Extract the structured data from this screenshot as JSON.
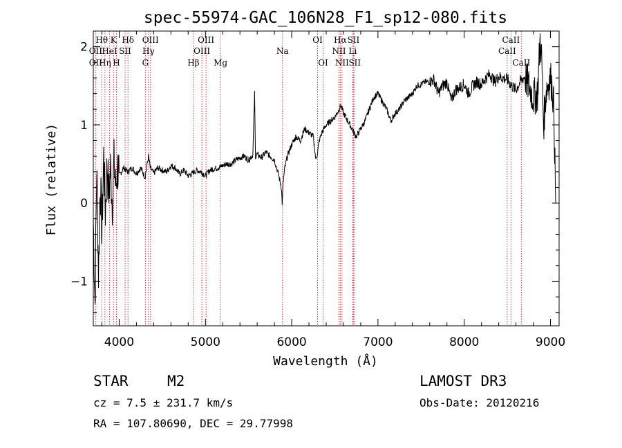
{
  "chart_data": {
    "type": "line",
    "title": "spec-55974-GAC_106N28_F1_sp12-080.fits",
    "xlabel": "Wavelength (Å)",
    "ylabel": "Flux (relative)",
    "xlim": [
      3700,
      9100
    ],
    "ylim": [
      -1.57,
      2.2
    ],
    "xticks": [
      4000,
      5000,
      6000,
      7000,
      8000,
      9000
    ],
    "yticks": [
      -1,
      0,
      1,
      2
    ],
    "grid": false,
    "series": [
      {
        "name": "flux",
        "x": [
          3700,
          3720,
          3740,
          3760,
          3780,
          3800,
          3820,
          3840,
          3860,
          3880,
          3900,
          3920,
          3940,
          3960,
          3980,
          4000,
          4050,
          4100,
          4150,
          4200,
          4250,
          4300,
          4340,
          4360,
          4400,
          4450,
          4500,
          4550,
          4600,
          4650,
          4700,
          4750,
          4800,
          4850,
          4900,
          4950,
          5000,
          5050,
          5100,
          5150,
          5200,
          5250,
          5300,
          5350,
          5400,
          5450,
          5500,
          5550,
          5570,
          5580,
          5600,
          5650,
          5700,
          5750,
          5800,
          5850,
          5880,
          5890,
          5900,
          5920,
          5950,
          6000,
          6050,
          6100,
          6150,
          6200,
          6250,
          6280,
          6300,
          6320,
          6350,
          6400,
          6450,
          6500,
          6550,
          6570,
          6600,
          6650,
          6700,
          6720,
          6750,
          6800,
          6850,
          6900,
          6950,
          7000,
          7050,
          7100,
          7150,
          7200,
          7250,
          7300,
          7350,
          7400,
          7450,
          7500,
          7550,
          7600,
          7650,
          7700,
          7750,
          7800,
          7850,
          7900,
          7950,
          8000,
          8050,
          8100,
          8150,
          8200,
          8250,
          8300,
          8350,
          8400,
          8450,
          8500,
          8550,
          8600,
          8650,
          8700,
          8750,
          8800,
          8850,
          8880,
          8900,
          8920,
          8950,
          8980,
          9000,
          9020,
          9040,
          9060
        ],
        "y": [
          -0.2,
          -1.3,
          0.5,
          -0.9,
          0.3,
          -0.4,
          0.6,
          -0.1,
          0.5,
          0.1,
          0.45,
          0.0,
          0.5,
          0.2,
          0.45,
          0.35,
          0.45,
          0.4,
          0.45,
          0.38,
          0.45,
          0.33,
          0.6,
          0.45,
          0.38,
          0.45,
          0.42,
          0.4,
          0.48,
          0.45,
          0.37,
          0.42,
          0.35,
          0.38,
          0.42,
          0.4,
          0.35,
          0.42,
          0.44,
          0.45,
          0.48,
          0.5,
          0.5,
          0.55,
          0.58,
          0.6,
          0.55,
          0.62,
          1.4,
          0.6,
          0.62,
          0.58,
          0.65,
          0.6,
          0.55,
          0.35,
          0.2,
          0.0,
          0.25,
          0.45,
          0.6,
          0.75,
          0.85,
          0.8,
          0.95,
          0.9,
          0.85,
          0.55,
          0.65,
          0.8,
          0.9,
          1.0,
          1.05,
          1.1,
          1.2,
          1.25,
          1.15,
          1.05,
          0.95,
          0.9,
          0.85,
          0.95,
          1.05,
          1.2,
          1.35,
          1.4,
          1.3,
          1.2,
          1.05,
          1.15,
          1.2,
          1.3,
          1.35,
          1.4,
          1.5,
          1.52,
          1.55,
          1.55,
          1.58,
          1.4,
          1.5,
          1.55,
          1.3,
          1.45,
          1.48,
          1.52,
          1.4,
          1.5,
          1.55,
          1.52,
          1.6,
          1.65,
          1.55,
          1.62,
          1.6,
          1.58,
          1.5,
          1.45,
          1.55,
          1.62,
          1.5,
          1.35,
          1.4,
          2.1,
          1.8,
          1.0,
          1.45,
          1.55,
          1.6,
          1.5,
          1.2,
          0.0
        ]
      }
    ],
    "spectral_lines": [
      {
        "name": "Hθ",
        "x": 3798,
        "row": 1
      },
      {
        "name": "OII",
        "x": 3727,
        "row": 2
      },
      {
        "name": "OII",
        "x": 3727,
        "row": 3
      },
      {
        "name": "Hη",
        "x": 3835,
        "row": 3
      },
      {
        "name": "HeI",
        "x": 3889,
        "row": 2
      },
      {
        "name": "K",
        "x": 3934,
        "row": 1
      },
      {
        "name": "H",
        "x": 3968,
        "row": 3
      },
      {
        "name": "SII",
        "x": 4069,
        "row": 2
      },
      {
        "name": "Hδ",
        "x": 4102,
        "row": 1
      },
      {
        "name": "OIII",
        "x": 4363,
        "row": 1
      },
      {
        "name": "Hγ",
        "x": 4340,
        "row": 2
      },
      {
        "name": "G",
        "x": 4304,
        "row": 3
      },
      {
        "name": "Hβ",
        "x": 4861,
        "row": 3
      },
      {
        "name": "OIII",
        "x": 5007,
        "row": 1
      },
      {
        "name": "OIII",
        "x": 4959,
        "row": 2
      },
      {
        "name": "Mg",
        "x": 5175,
        "row": 3
      },
      {
        "name": "Na",
        "x": 5893,
        "row": 2
      },
      {
        "name": "OI",
        "x": 6300,
        "row": 1
      },
      {
        "name": "OI",
        "x": 6364,
        "row": 3
      },
      {
        "name": "Hα",
        "x": 6563,
        "row": 1
      },
      {
        "name": "SII",
        "x": 6716,
        "row": 1
      },
      {
        "name": "NII",
        "x": 6548,
        "row": 2
      },
      {
        "name": "Li",
        "x": 6708,
        "row": 2
      },
      {
        "name": "NII",
        "x": 6583,
        "row": 3
      },
      {
        "name": "SII",
        "x": 6731,
        "row": 3
      },
      {
        "name": "CaII",
        "x": 8542,
        "row": 1
      },
      {
        "name": "CaII",
        "x": 8498,
        "row": 2
      },
      {
        "name": "CaII",
        "x": 8662,
        "row": 3
      }
    ]
  },
  "info": {
    "object_class": "STAR",
    "subclass": "M2",
    "survey": "LAMOST DR3",
    "cz": "cz = 7.5 ± 231.7 km/s",
    "obs_date": "Obs-Date: 20120216",
    "coords": "RA = 107.80690, DEC =  29.77998"
  },
  "colors": {
    "line_marker": "#c8393f",
    "spectrum": "#000000"
  }
}
